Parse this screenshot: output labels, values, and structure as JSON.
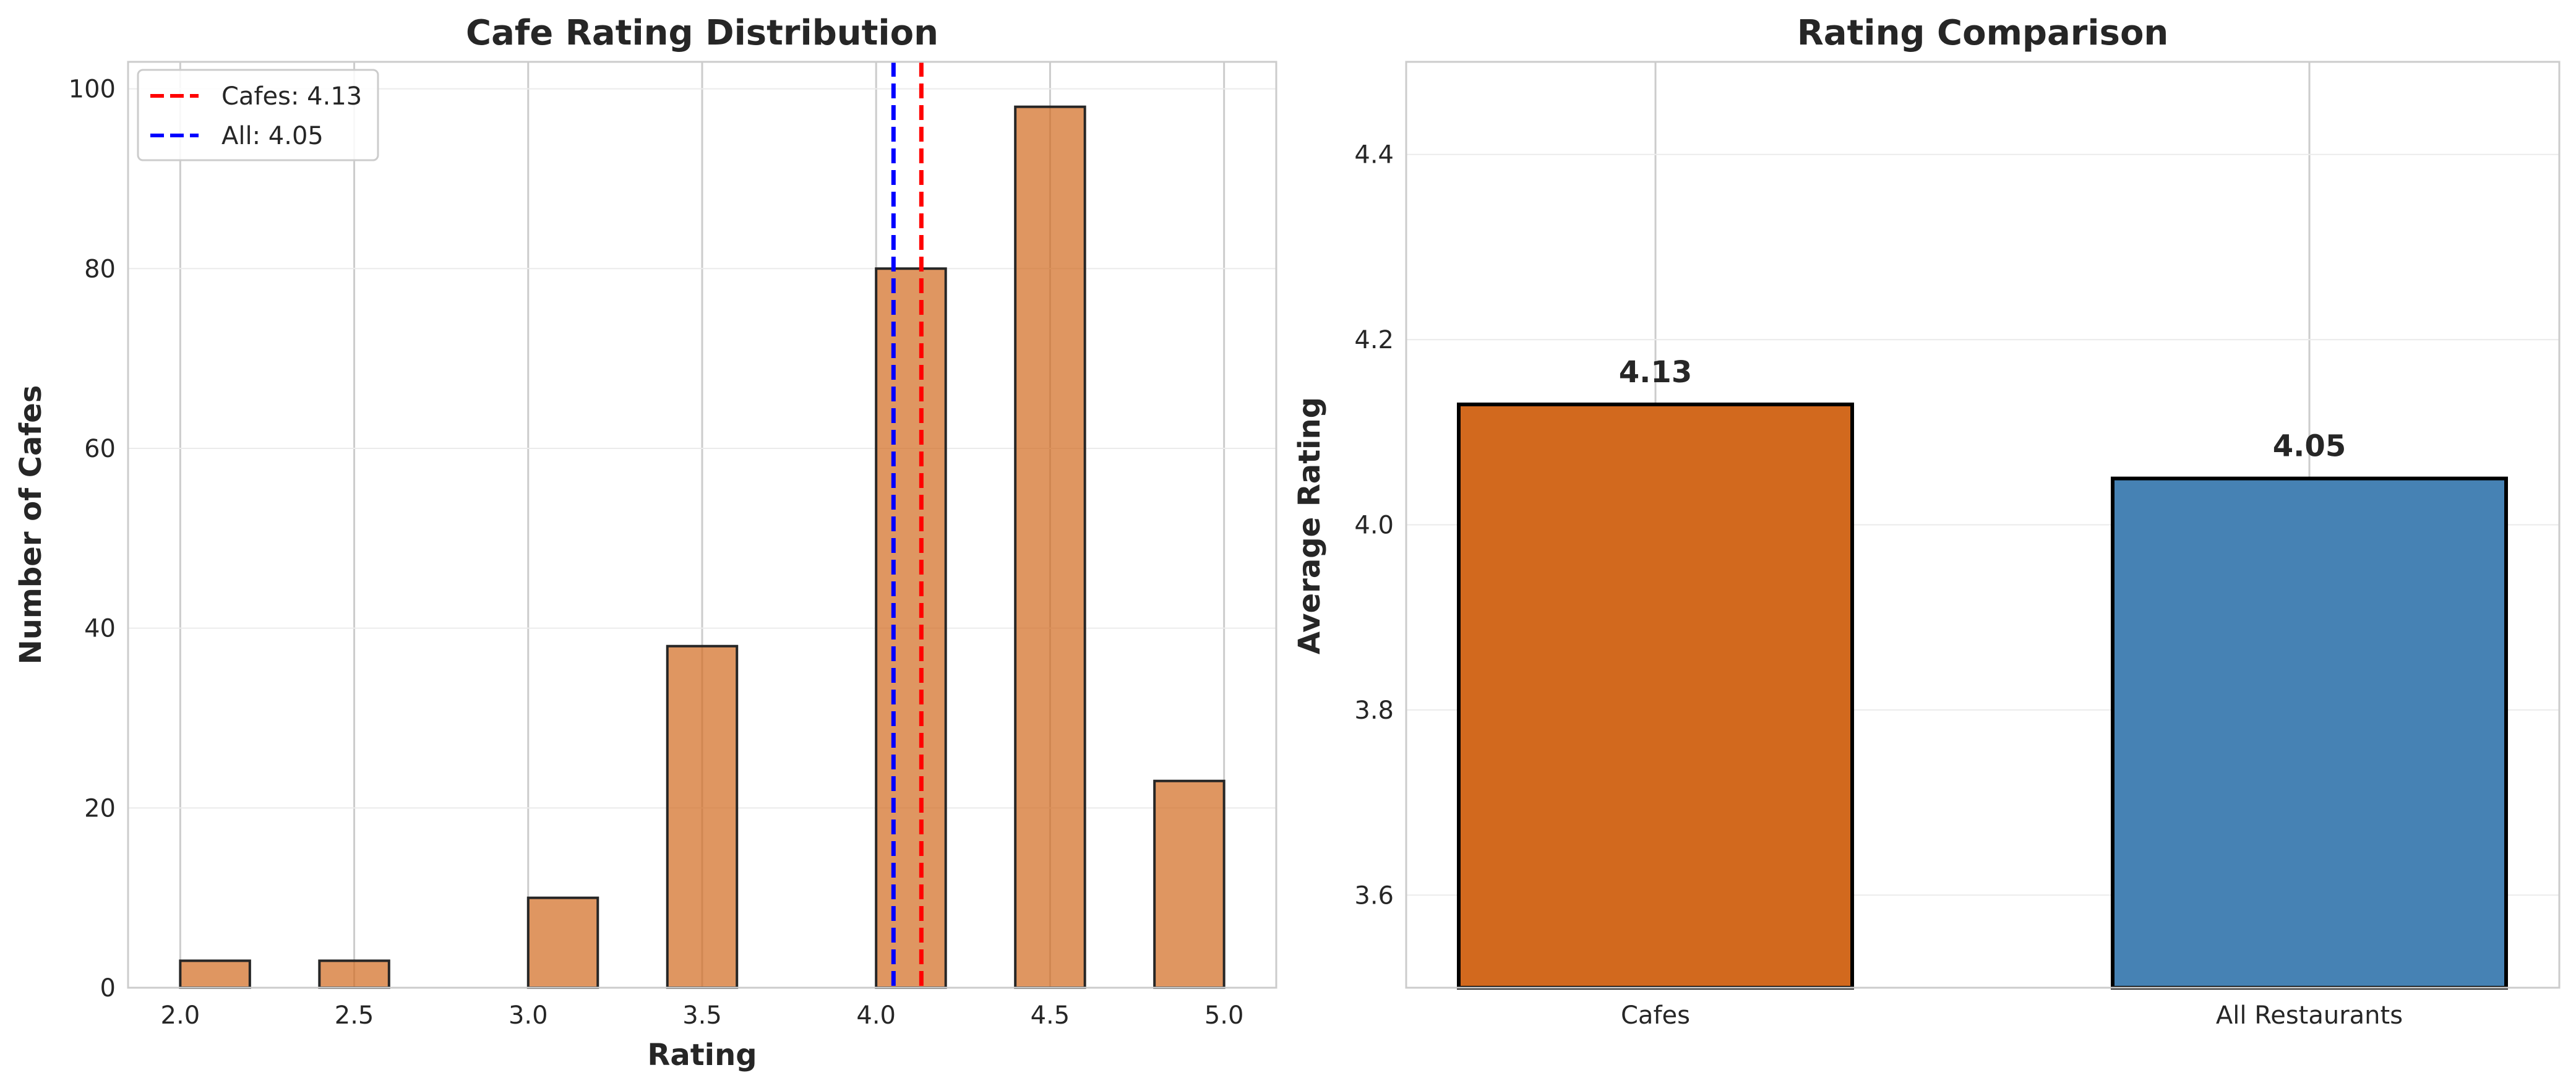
{
  "chart_data": [
    {
      "type": "bar",
      "subtype": "histogram",
      "title": "Cafe Rating Distribution",
      "xlabel": "Rating",
      "ylabel": "Number of Cafes",
      "xlim": [
        1.85,
        5.15
      ],
      "ylim": [
        0,
        103
      ],
      "xticks": [
        "2.0",
        "2.5",
        "3.0",
        "3.5",
        "4.0",
        "4.5",
        "5.0"
      ],
      "yticks": [
        "0",
        "20",
        "40",
        "60",
        "80",
        "100"
      ],
      "bins": [
        {
          "start": 2.0,
          "end": 2.2,
          "count": 3
        },
        {
          "start": 2.4,
          "end": 2.6,
          "count": 3
        },
        {
          "start": 3.0,
          "end": 3.2,
          "count": 10
        },
        {
          "start": 3.4,
          "end": 3.6,
          "count": 38
        },
        {
          "start": 4.0,
          "end": 4.2,
          "count": 80
        },
        {
          "start": 4.4,
          "end": 4.6,
          "count": 98
        },
        {
          "start": 4.8,
          "end": 5.0,
          "count": 23
        }
      ],
      "bar_color": "#D2691E",
      "reference_lines": [
        {
          "label": "Cafes: 4.13",
          "x": 4.13,
          "color": "#FF0000",
          "style": "dashed"
        },
        {
          "label": "All: 4.05",
          "x": 4.05,
          "color": "#0000FF",
          "style": "dashed"
        }
      ],
      "legend_position": "top-left",
      "grid": true
    },
    {
      "type": "bar",
      "title": "Rating Comparison",
      "xlabel": "",
      "ylabel": "Average Rating",
      "categories": [
        "Cafes",
        "All Restaurants"
      ],
      "values": [
        4.13,
        4.05
      ],
      "value_labels": [
        "4.13",
        "4.05"
      ],
      "colors": [
        "#D2691E",
        "#4682B4"
      ],
      "ylim": [
        3.5,
        4.5
      ],
      "yticks": [
        "3.6",
        "3.8",
        "4.0",
        "4.2",
        "4.4"
      ],
      "grid": true
    }
  ]
}
